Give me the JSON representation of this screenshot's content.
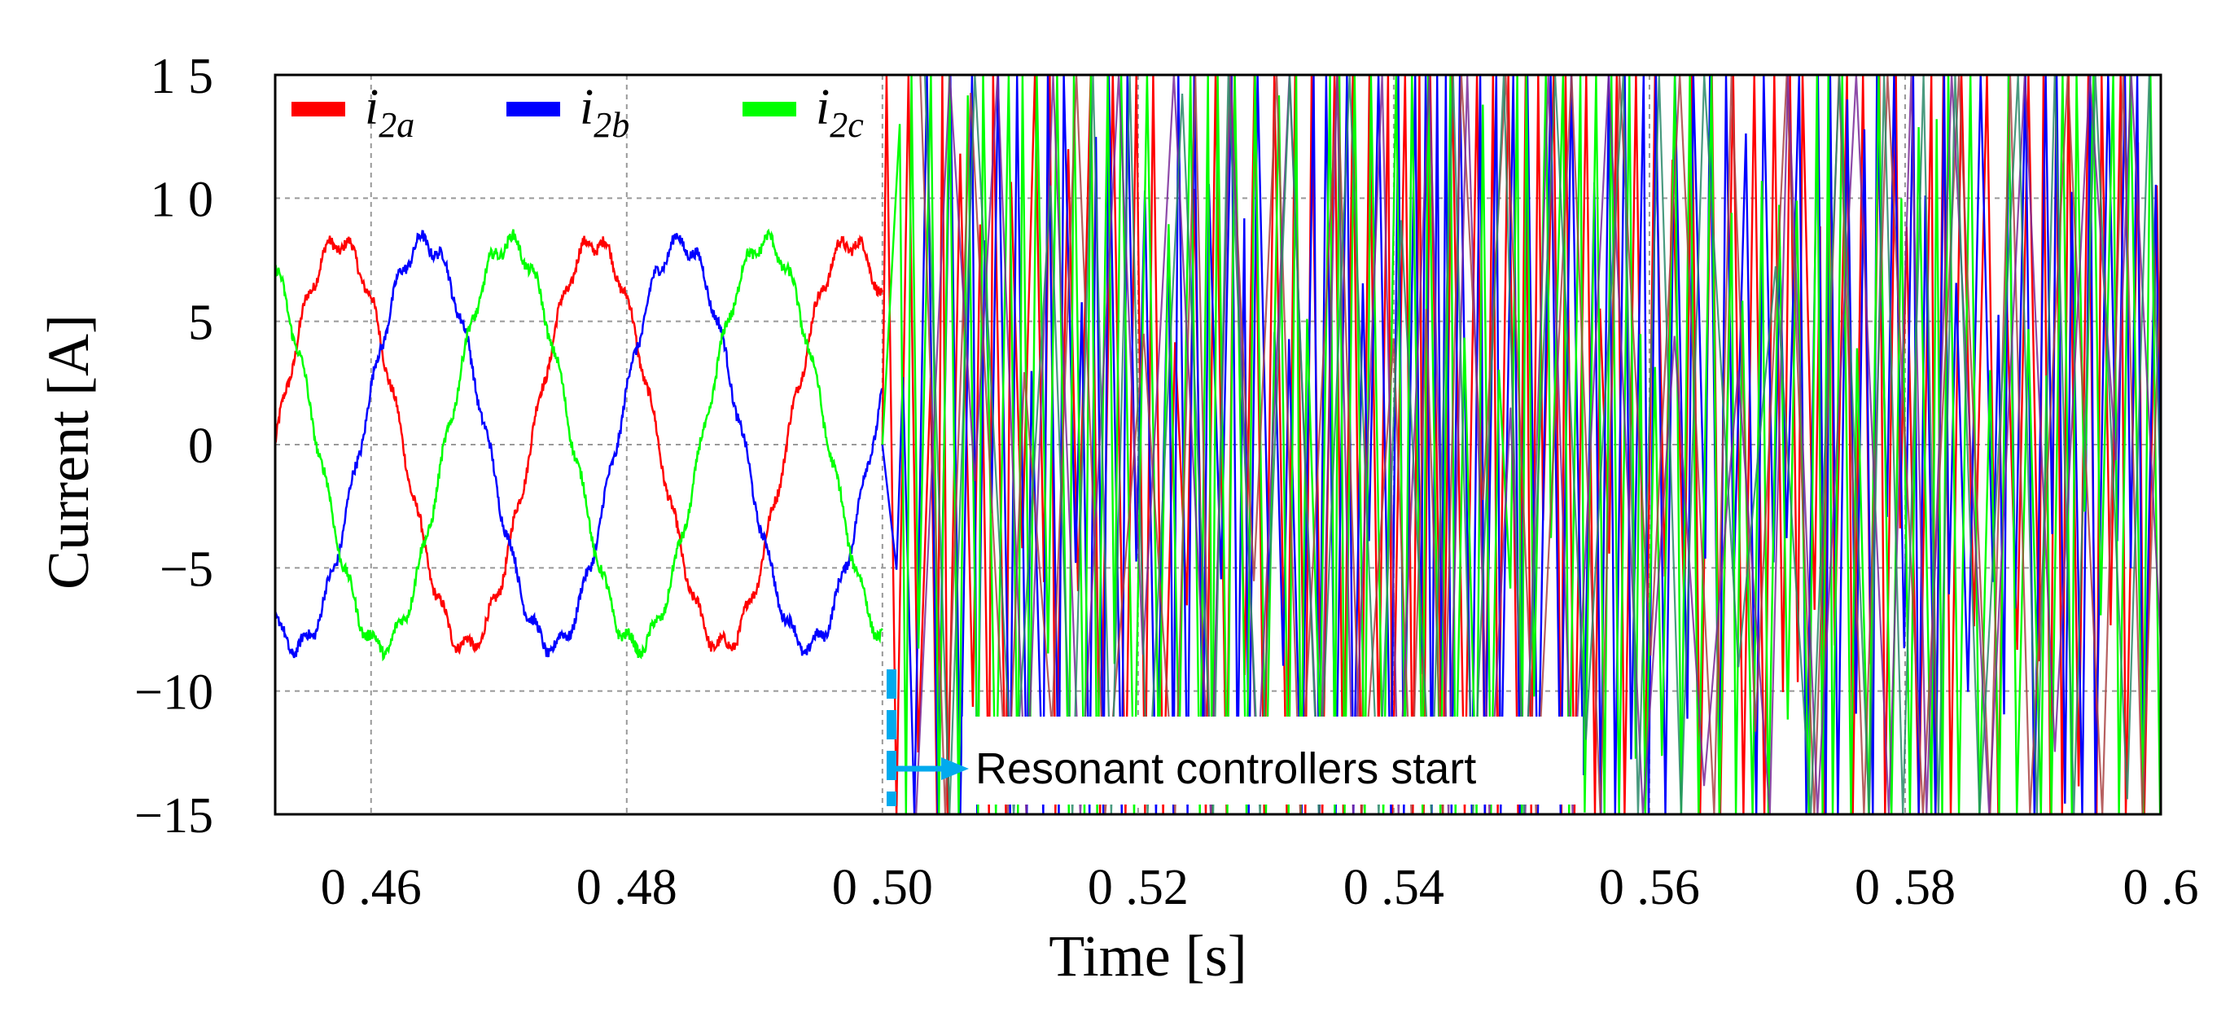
{
  "chart_data": {
    "type": "line",
    "title": "",
    "xlabel": "Time [s]",
    "ylabel": "Current [A]",
    "xlim": [
      0.4525,
      0.6
    ],
    "ylim": [
      -15,
      15
    ],
    "xticks": [
      0.46,
      0.48,
      0.5,
      0.52,
      0.54,
      0.56,
      0.58,
      0.6
    ],
    "xtick_labels": [
      "0 .46",
      "0 .48",
      "0 .50",
      "0 .52",
      "0 .54",
      "0 .56",
      "0 .58",
      "0 .6"
    ],
    "yticks": [
      15,
      10,
      5,
      0,
      -5,
      -10,
      -15
    ],
    "ytick_labels": [
      "1 5",
      "1 0",
      "5",
      "0",
      "−5",
      "−10",
      "−15"
    ],
    "grid": true,
    "legend": {
      "placement": "top-left",
      "entries": [
        {
          "base": "i",
          "sub": "2a",
          "color": "#ff0000"
        },
        {
          "base": "i",
          "sub": "2b",
          "color": "#0000ff"
        },
        {
          "base": "i",
          "sub": "2c",
          "color": "#00ff00"
        }
      ]
    },
    "series": [
      {
        "name": "i2a",
        "color": "#ff0000",
        "amplitude": 8.2,
        "frequency_hz": 50,
        "phase_deg": 0,
        "t_start": 0.4525,
        "t_end": 0.5
      },
      {
        "name": "i2b",
        "color": "#0000ff",
        "amplitude": 8.2,
        "frequency_hz": 50,
        "phase_deg": -120,
        "t_start": 0.4525,
        "t_end": 0.5
      },
      {
        "name": "i2c",
        "color": "#00ff00",
        "amplitude": 8.2,
        "frequency_hz": 50,
        "phase_deg": 120,
        "t_start": 0.4525,
        "t_end": 0.5
      }
    ],
    "after_event": {
      "t_start": 0.5,
      "t_end": 0.6,
      "behavior": "unstable oscillation saturating at ±15 A"
    },
    "annotation": {
      "text": "Resonant  controllers start",
      "x": 0.5,
      "color": "#00aaee"
    }
  }
}
